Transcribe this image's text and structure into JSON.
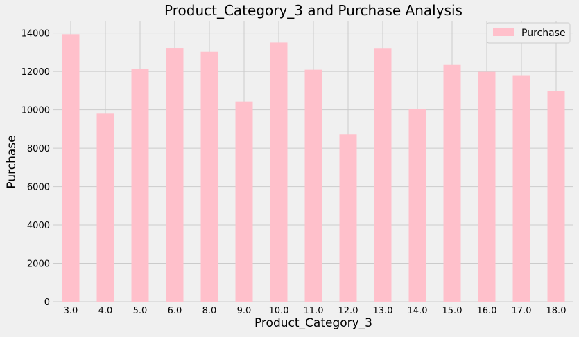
{
  "chart_data": {
    "type": "bar",
    "title": "Product_Category_3 and Purchase Analysis",
    "xlabel": "Product_Category_3",
    "ylabel": "Purchase",
    "categories": [
      "3.0",
      "4.0",
      "5.0",
      "6.0",
      "8.0",
      "9.0",
      "10.0",
      "11.0",
      "12.0",
      "13.0",
      "14.0",
      "15.0",
      "16.0",
      "17.0",
      "18.0"
    ],
    "series": [
      {
        "name": "Purchase",
        "values": [
          13940,
          9795,
          12117,
          13194,
          13024,
          10431,
          13505,
          12091,
          8716,
          13186,
          10053,
          12339,
          11982,
          11770,
          10994
        ]
      }
    ],
    "yticks": [
      0,
      2000,
      4000,
      6000,
      8000,
      10000,
      12000,
      14000
    ],
    "ylim": [
      0,
      14637
    ],
    "grid": true,
    "legend_position": "top-right",
    "bar_color": "#ffc0cb",
    "background_color": "#f0f0f0",
    "grid_color": "#cbcbcb"
  }
}
